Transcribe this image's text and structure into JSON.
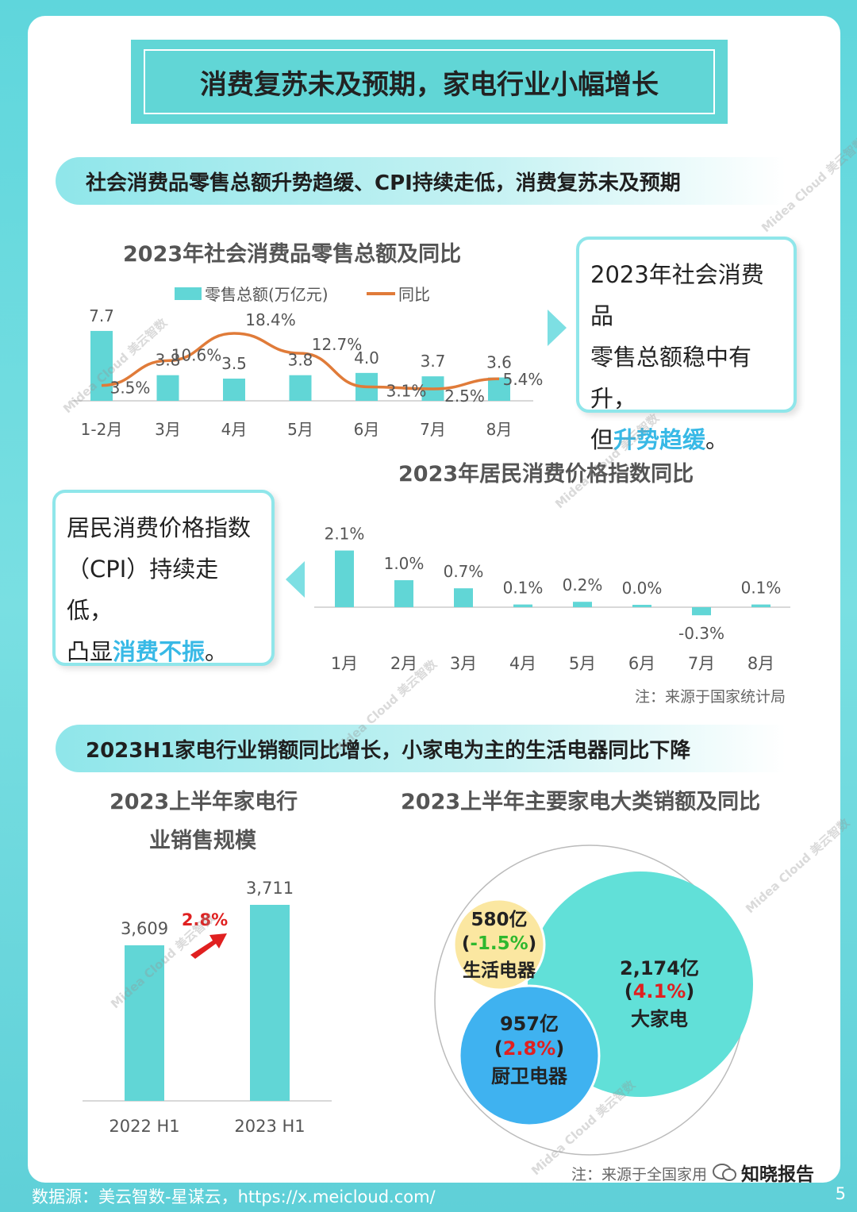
{
  "page_title": "消费复苏未及预期，家电行业小幅增长",
  "banner1": "社会消费品零售总额升势趋缓、CPI持续走低，消费复苏未及预期",
  "banner2": "2023H1家电行业销额同比增长，小家电为主的生活电器同比下降",
  "callout1": {
    "line1": "2023年社会消费品",
    "line2": "零售总额稳中有升，",
    "line3_pre": "但",
    "line3_hl": "升势趋缓",
    "line3_post": "。"
  },
  "callout2": {
    "line1": "居民消费价格指数",
    "line2": "（CPI）持续走低，",
    "line3_pre": "凸显",
    "line3_hl": "消费不振",
    "line3_post": "。"
  },
  "note_cpi": "注：来源于国家统计局",
  "note_bottom": "注：来源于全国家用",
  "wechat_label": "知晓报告",
  "footer": "数据源：美云智数-星谋云，https://x.meicloud.com/",
  "page_number": "5",
  "watermark": "Midea Cloud 美云智数",
  "colors": {
    "teal": "#61d6d6",
    "orange": "#e07b39",
    "blue": "#38b9e6",
    "red": "#e02020",
    "green": "#2eb82e",
    "yellow": "#fbe7a1",
    "sky": "#3fb2f0"
  },
  "chart_data": [
    {
      "type": "bar",
      "title": "2023年社会消费品零售总额及同比",
      "categories": [
        "1-2月",
        "3月",
        "4月",
        "5月",
        "6月",
        "7月",
        "8月"
      ],
      "series": [
        {
          "name": "零售总额(万亿元)",
          "type": "bar",
          "values": [
            7.7,
            3.8,
            3.5,
            3.8,
            4.0,
            3.7,
            3.6
          ],
          "labels": [
            "7.7",
            "3.8",
            "3.5",
            "3.8",
            "4.0",
            "3.7",
            "3.6"
          ]
        },
        {
          "name": "同比",
          "type": "line",
          "values": [
            3.5,
            10.6,
            18.4,
            12.7,
            3.1,
            2.5,
            5.4
          ],
          "labels": [
            "3.5%",
            "10.6%",
            "18.4%",
            "12.7%",
            "3.1%",
            "2.5%",
            "5.4%"
          ]
        }
      ],
      "legend": "top"
    },
    {
      "type": "bar",
      "title": "2023年居民消费价格指数同比",
      "categories": [
        "1月",
        "2月",
        "3月",
        "4月",
        "5月",
        "6月",
        "7月",
        "8月"
      ],
      "values": [
        2.1,
        1.0,
        0.7,
        0.1,
        0.2,
        0.0,
        -0.3,
        0.1
      ],
      "labels": [
        "2.1%",
        "1.0%",
        "0.7%",
        "0.1%",
        "0.2%",
        "0.0%",
        "-0.3%",
        "0.1%"
      ]
    },
    {
      "type": "bar",
      "title_line1": "2023上半年家电行",
      "title_line2": "业销售规模",
      "categories": [
        "2022 H1",
        "2023 H1"
      ],
      "values": [
        3609,
        3711
      ],
      "labels": [
        "3,609",
        "3,711"
      ],
      "growth_label": "2.8%"
    },
    {
      "type": "bubble",
      "title": "2023上半年主要家电大类销额及同比",
      "items": [
        {
          "name": "大家电",
          "value_label": "2,174亿",
          "yoy_label": "4.1%",
          "value": 2174,
          "yoy": 4.1
        },
        {
          "name": "厨卫电器",
          "value_label": "957亿",
          "yoy_label": "2.8%",
          "value": 957,
          "yoy": 2.8
        },
        {
          "name": "生活电器",
          "value_label": "580亿",
          "yoy_label": "-1.5%",
          "value": 580,
          "yoy": -1.5
        }
      ]
    }
  ]
}
